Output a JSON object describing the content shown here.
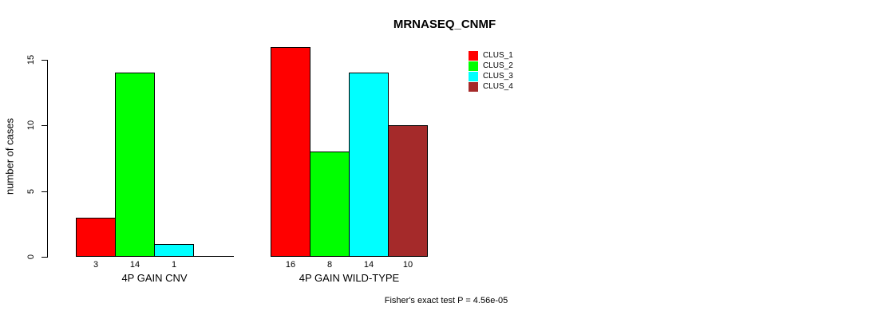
{
  "chart_data": {
    "type": "bar",
    "title": "MRNASEQ_CNMF",
    "ylabel": "number of cases",
    "xlabel": "",
    "ylim": [
      0,
      16.5
    ],
    "yticks": [
      0,
      5,
      10,
      15
    ],
    "grid": false,
    "legend_position": "top-right",
    "categories": [
      "4P GAIN CNV",
      "4P GAIN WILD-TYPE"
    ],
    "series": [
      {
        "name": "CLUS_1",
        "color": "#FF0000",
        "values": [
          3,
          16
        ]
      },
      {
        "name": "CLUS_2",
        "color": "#00FF00",
        "values": [
          14,
          8
        ]
      },
      {
        "name": "CLUS_3",
        "color": "#00FFFF",
        "values": [
          1,
          14
        ]
      },
      {
        "name": "CLUS_4",
        "color": "#A52A2A",
        "values": [
          0,
          10
        ]
      }
    ],
    "bar_value_labels": [
      [
        "3",
        "14",
        "1",
        ""
      ],
      [
        "16",
        "8",
        "14",
        "10"
      ]
    ],
    "annotation": "Fisher's exact test P = 4.56e-05"
  }
}
